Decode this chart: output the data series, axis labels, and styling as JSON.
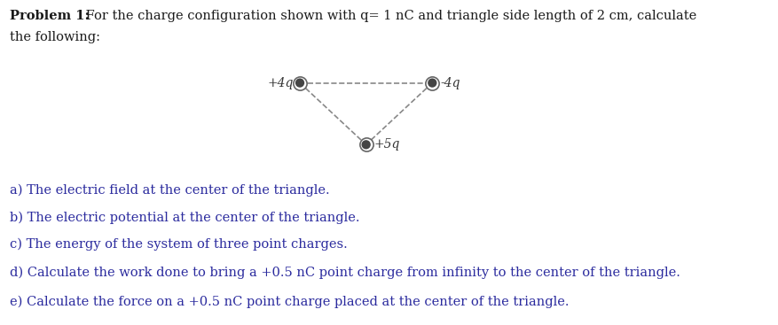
{
  "title_bold": "Problem 1:",
  "title_rest": " For the charge configuration shown with q= 1 nC and triangle side length of 2 cm, calculate",
  "title_line2": "the following:",
  "charge_labels": {
    "left": "+4q",
    "right": "-4q",
    "bottom": "+5q"
  },
  "dot_color": "#555555",
  "dot_inner_color": "#444444",
  "line_color": "#888888",
  "line_style": "--",
  "line_width": 1.2,
  "text_color": "#2b2b9e",
  "title_color": "#1a1a1a",
  "label_color": "#555555",
  "label_fontsize": 10,
  "body_fontsize": 10.5,
  "items": [
    "a) The electric field at the center of the triangle.",
    "b) The electric potential at the center of the triangle.",
    "c) The energy of the system of three point charges.",
    "d) Calculate the work done to bring a +0.5 nC point charge from infinity to the center of the triangle.",
    "e) Calculate the force on a +0.5 nC point charge placed at the center of the triangle."
  ],
  "background_color": "#ffffff",
  "fig_width": 8.78,
  "fig_height": 3.67
}
